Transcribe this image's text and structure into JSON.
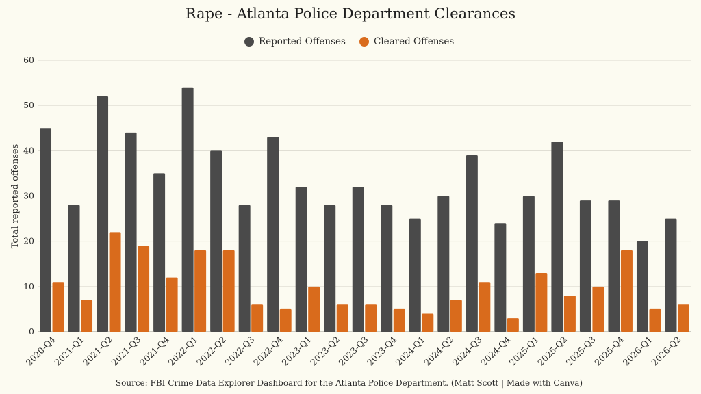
{
  "chart_data": {
    "type": "bar",
    "title": "Rape - Atlanta Police Department Clearances",
    "ylabel": "Total reported offenses",
    "xlabel": "",
    "source": "Source: FBI Crime Data Explorer Dashboard for the Atlanta Police Department. (Matt Scott | Made with Canva)",
    "ylim": [
      0,
      60
    ],
    "yticks": [
      0,
      10,
      20,
      30,
      40,
      50,
      60
    ],
    "grid": true,
    "legend_position": "top-center",
    "categories": [
      "2020-Q4",
      "2021-Q1",
      "2021-Q2",
      "2021-Q3",
      "2021-Q4",
      "2022-Q1",
      "2022-Q2",
      "2022-Q3",
      "2022-Q4",
      "2023-Q1",
      "2023-Q2",
      "2023-Q3",
      "2023-Q4",
      "2024-Q1",
      "2024-Q2",
      "2024-Q3",
      "2024-Q4",
      "2025-Q1",
      "2025-Q2",
      "2025-Q3",
      "2025-Q4",
      "2026-Q1",
      "2026-Q2"
    ],
    "series": [
      {
        "name": "Reported Offenses",
        "color": "#4a4a4a",
        "values": [
          45,
          28,
          52,
          44,
          35,
          54,
          40,
          28,
          43,
          32,
          28,
          32,
          28,
          25,
          30,
          39,
          24,
          30,
          42,
          29,
          29,
          20,
          25
        ]
      },
      {
        "name": "Cleared Offenses",
        "color": "#d96b1c",
        "values": [
          11,
          7,
          22,
          19,
          12,
          18,
          18,
          6,
          5,
          10,
          6,
          6,
          5,
          4,
          7,
          11,
          3,
          13,
          8,
          10,
          18,
          5,
          6
        ]
      }
    ]
  }
}
